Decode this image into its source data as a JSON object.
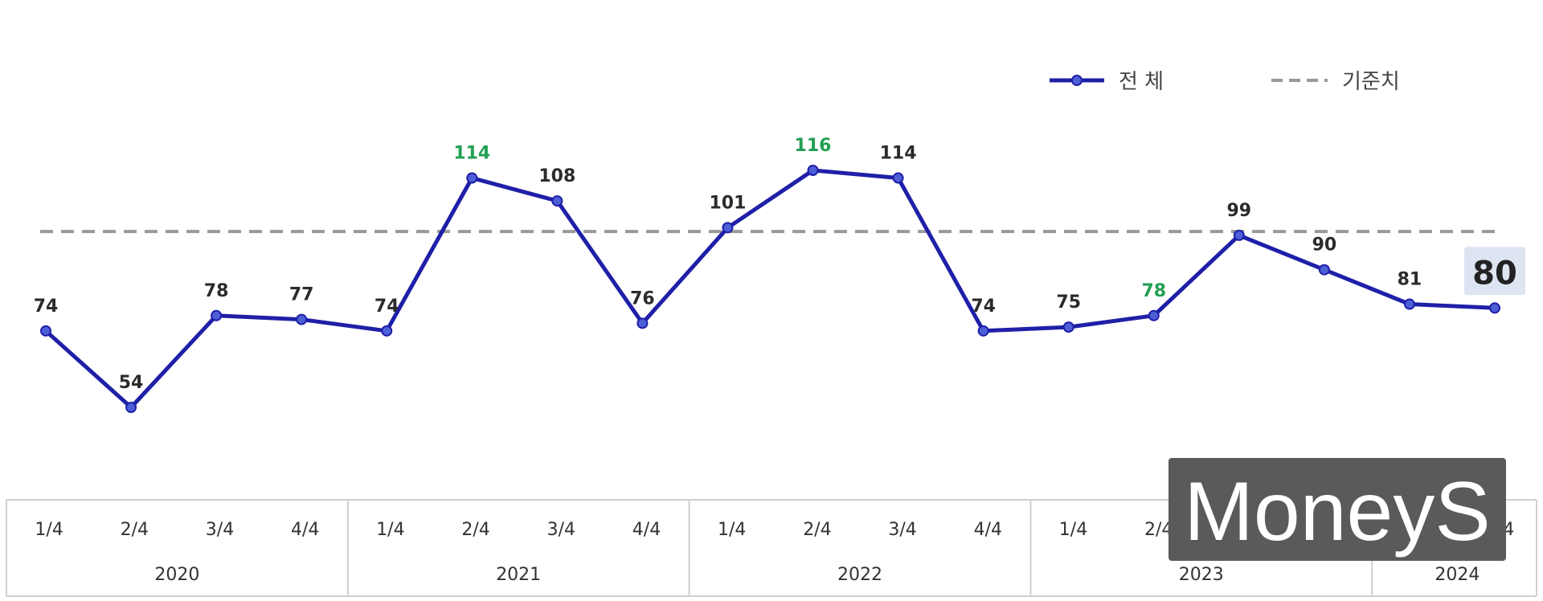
{
  "chart_data": {
    "type": "line",
    "categories": [
      "1/4",
      "2/4",
      "3/4",
      "4/4",
      "1/4",
      "2/4",
      "3/4",
      "4/4",
      "1/4",
      "2/4",
      "3/4",
      "4/4",
      "1/4",
      "2/4",
      "3/4",
      "4/4",
      "1/4",
      "2/4"
    ],
    "years": [
      "2020",
      "2021",
      "2022",
      "2023",
      "2024"
    ],
    "series": [
      {
        "name": "전 체",
        "color": "#1f1fa8",
        "values": [
          74,
          54,
          78,
          77,
          74,
          114,
          108,
          76,
          101,
          116,
          114,
          74,
          75,
          78,
          99,
          90,
          81,
          80
        ],
        "highlight_indices": [
          5,
          9,
          13
        ],
        "highlight_color": "#22a052"
      }
    ],
    "baseline": {
      "name": "기준치",
      "value": 100,
      "color": "#999999",
      "style": "dashed"
    },
    "ylim": [
      30,
      130
    ],
    "title": "",
    "xlabel": "",
    "ylabel": "",
    "legend_position": "top-right",
    "grid": false
  },
  "watermark": {
    "text": "MoneyS",
    "background": "#5a5a5a"
  }
}
